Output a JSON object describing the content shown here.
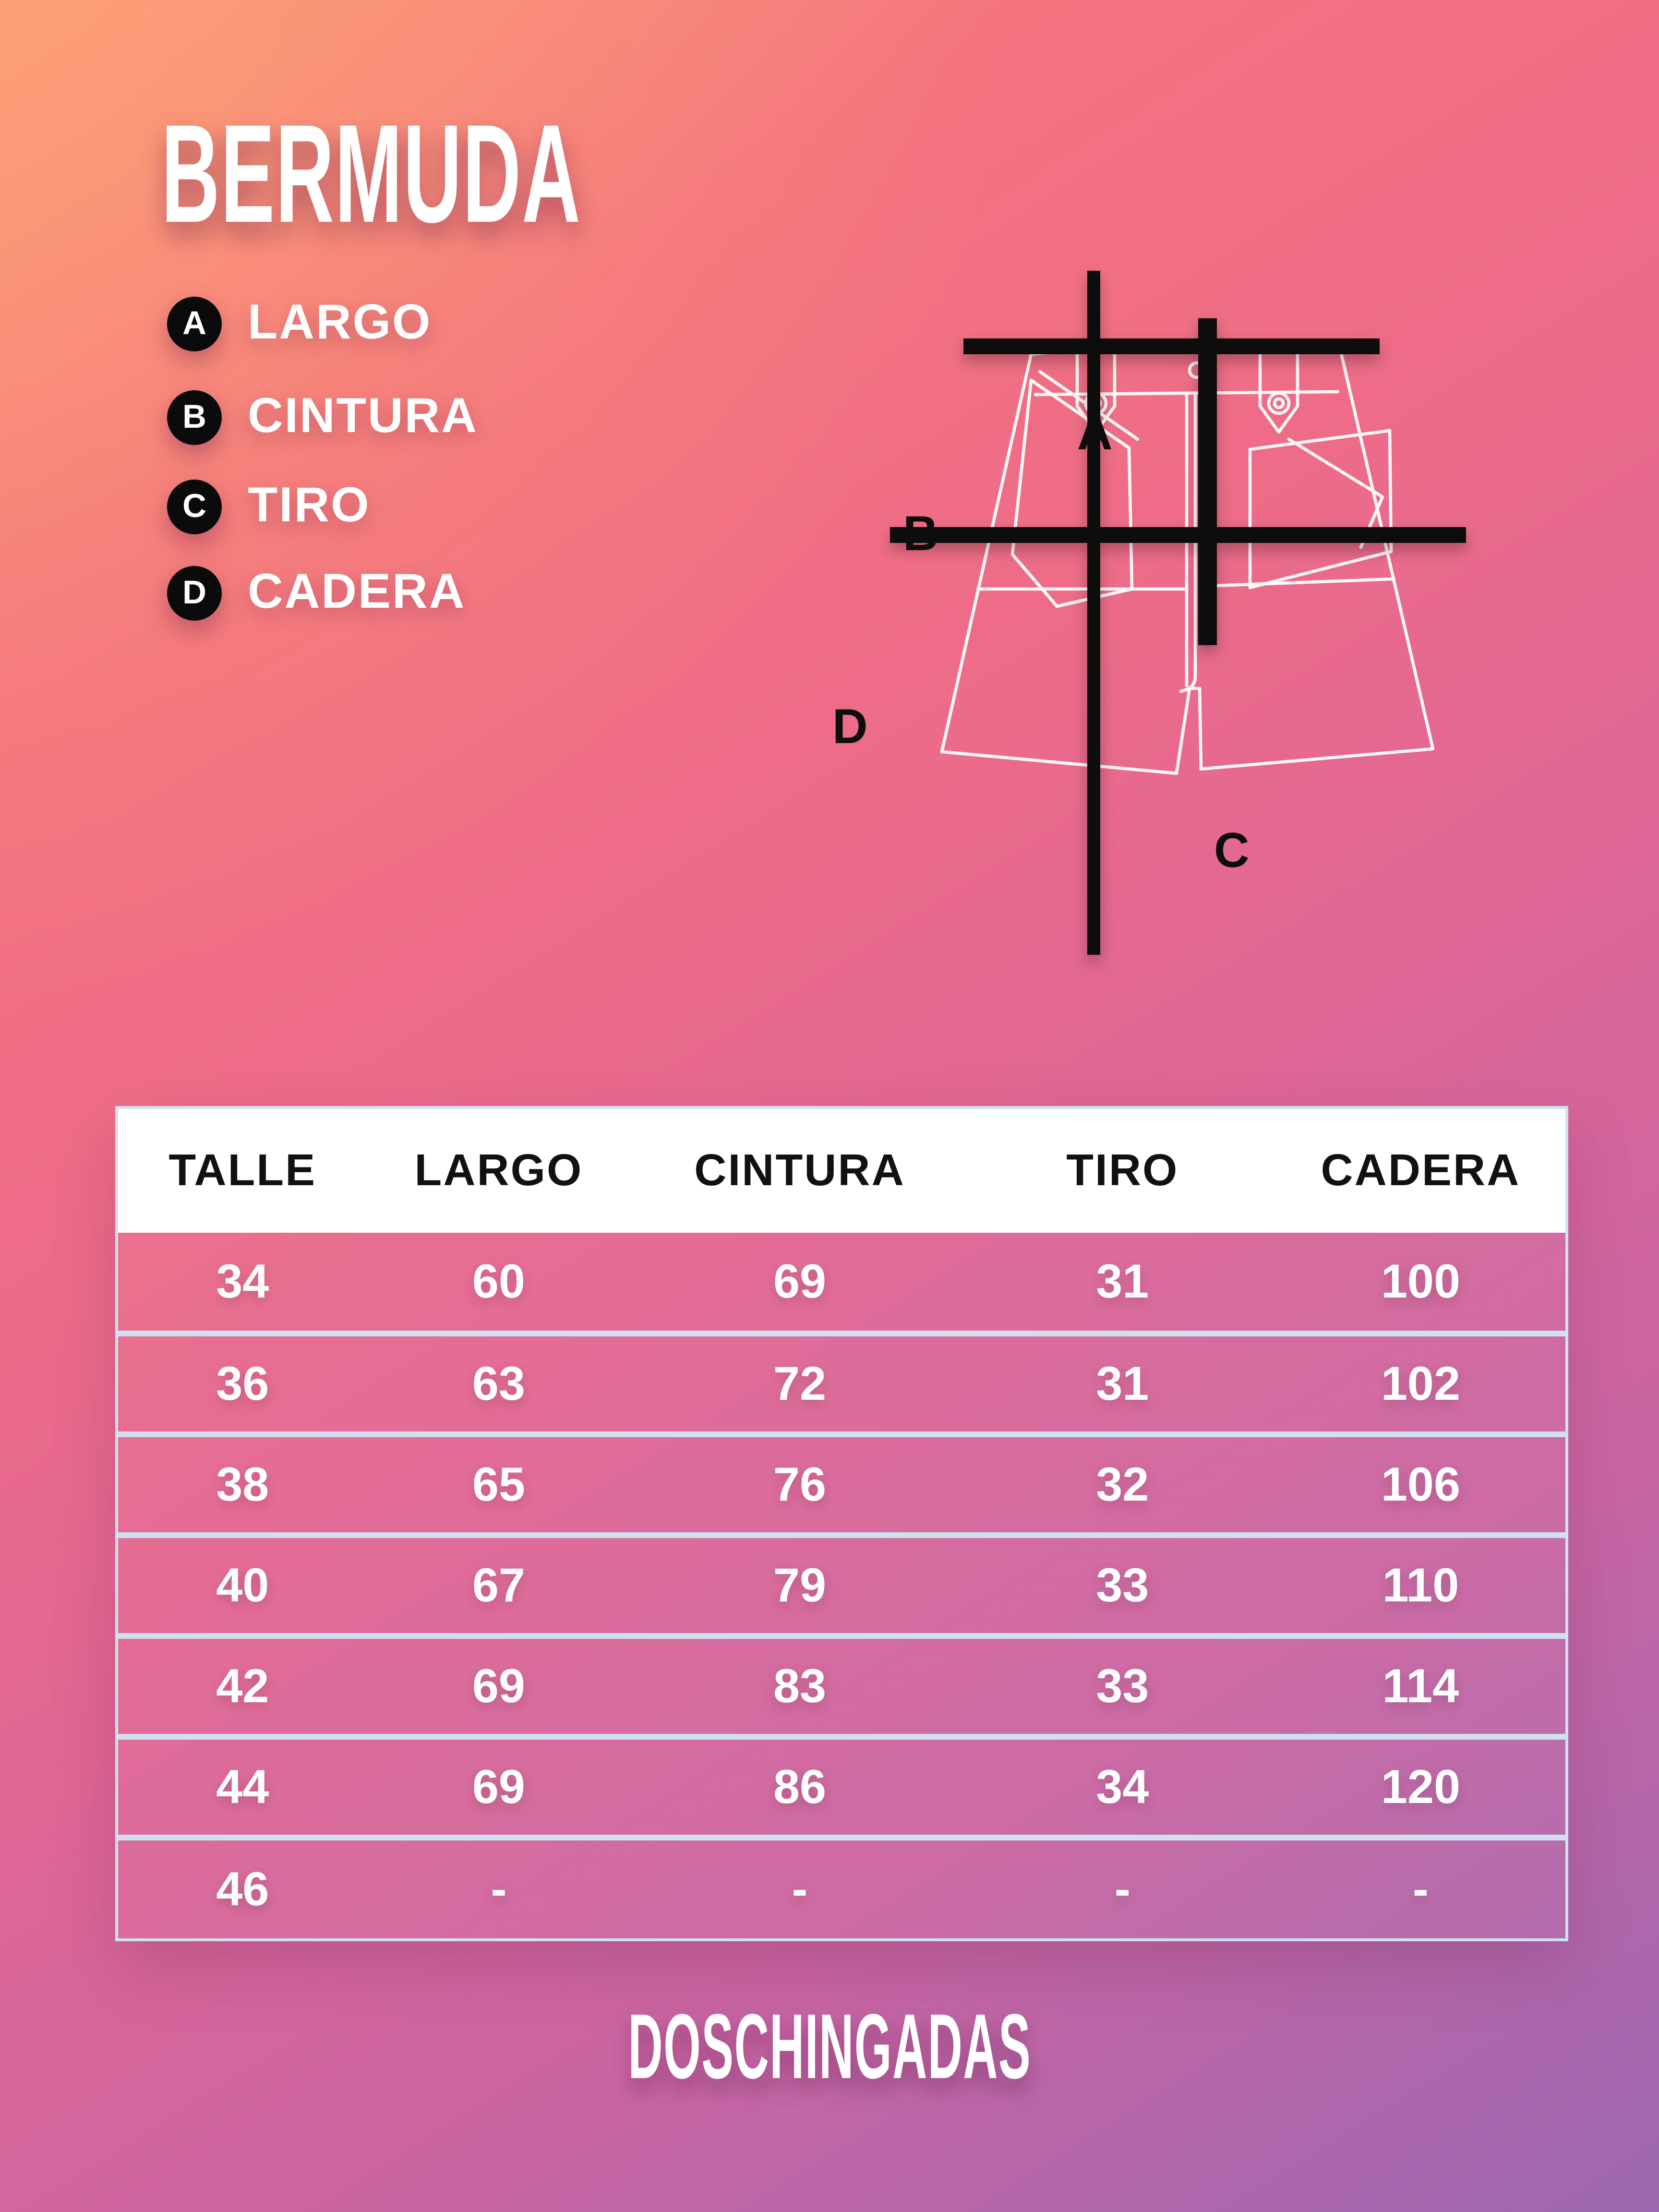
{
  "title": "BERMUDA",
  "legend": [
    {
      "key": "A",
      "label": "LARGO"
    },
    {
      "key": "B",
      "label": "CINTURA"
    },
    {
      "key": "C",
      "label": "TIRO"
    },
    {
      "key": "D",
      "label": "CADERA"
    }
  ],
  "diagram": {
    "labels": {
      "a": "A",
      "b": "B",
      "c": "C",
      "d": "D"
    }
  },
  "table": {
    "headers": [
      "TALLE",
      "LARGO",
      "CINTURA",
      "TIRO",
      "CADERA"
    ],
    "rows": [
      [
        "34",
        "60",
        "69",
        "31",
        "100"
      ],
      [
        "36",
        "63",
        "72",
        "31",
        "102"
      ],
      [
        "38",
        "65",
        "76",
        "32",
        "106"
      ],
      [
        "40",
        "67",
        "79",
        "33",
        "110"
      ],
      [
        "42",
        "69",
        "83",
        "33",
        "114"
      ],
      [
        "44",
        "69",
        "86",
        "34",
        "120"
      ],
      [
        "46",
        "-",
        "-",
        "-",
        "-"
      ]
    ]
  },
  "chart_data": {
    "type": "table",
    "title": "BERMUDA",
    "columns": [
      "TALLE",
      "LARGO",
      "CINTURA",
      "TIRO",
      "CADERA"
    ],
    "rows": [
      [
        34,
        60,
        69,
        31,
        100
      ],
      [
        36,
        63,
        72,
        31,
        102
      ],
      [
        38,
        65,
        76,
        32,
        106
      ],
      [
        40,
        67,
        79,
        33,
        110
      ],
      [
        42,
        69,
        83,
        33,
        114
      ],
      [
        44,
        69,
        86,
        34,
        120
      ],
      [
        46,
        null,
        null,
        null,
        null
      ]
    ],
    "notes": "Measurement key: A=LARGO, B=CINTURA, C=TIRO, D=CADERA; size 46 values shown as dashes"
  },
  "footer": {
    "brand": "DOSCHINGADAS"
  },
  "colors": {
    "gradient_top_left": "#FA947C",
    "gradient_top_right": "#F2707F",
    "gradient_bottom_left": "#CC68A1",
    "gradient_bottom_right": "#9D68B1",
    "header_bg": "#FFFFFF",
    "header_text": "#111111",
    "table_rule": "#CFE1F1",
    "body_text": "#FFFFFF",
    "badge_bg": "#0B0B0B",
    "measure_line": "#0C0C0C",
    "outline": "#FFFFFF"
  }
}
